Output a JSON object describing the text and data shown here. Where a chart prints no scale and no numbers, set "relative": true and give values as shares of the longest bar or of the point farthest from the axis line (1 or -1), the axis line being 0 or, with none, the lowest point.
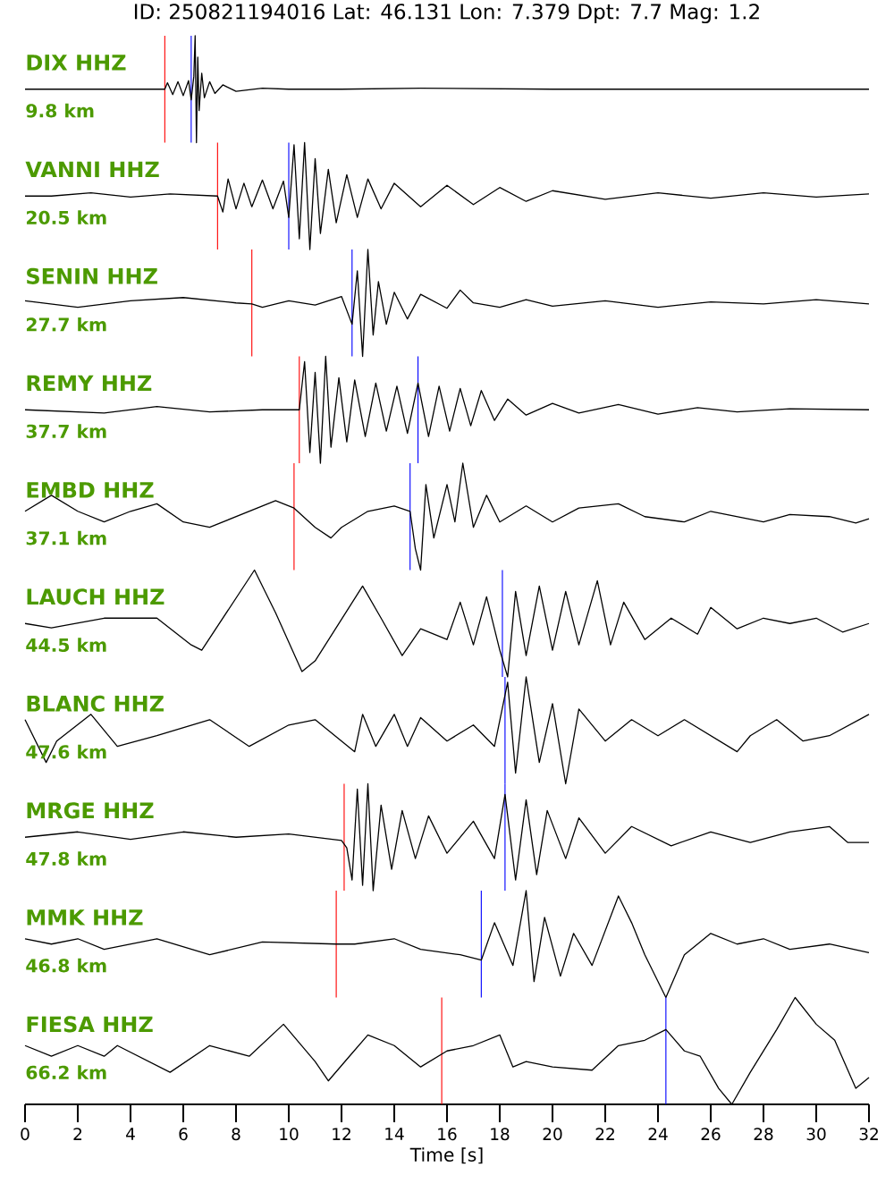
{
  "chart_data": [
    {
      "type": "line",
      "relative": true,
      "title": "ID: 250821194016 Lat:  46.131 Lon:   7.379 Dpt:     7.7 Mag:   1.2",
      "annotations": [
        "DIX HHZ",
        "9.8 km"
      ],
      "color": "#000000",
      "xlim": [
        0,
        32
      ],
      "tick_labels": false,
      "ref_lines": [
        {
          "axis": "x",
          "value": 5.3,
          "color": "#ff0000"
        },
        {
          "axis": "x",
          "value": 6.3,
          "color": "#0000ff"
        }
      ],
      "x": [
        0,
        5.3,
        5.4,
        5.6,
        5.8,
        6.0,
        6.2,
        6.3,
        6.4,
        6.45,
        6.5,
        6.55,
        6.6,
        6.7,
        6.8,
        7.0,
        7.2,
        7.5,
        8,
        9,
        10,
        12,
        15,
        20,
        25,
        32
      ],
      "values": [
        0.5,
        0.5,
        0.56,
        0.45,
        0.57,
        0.44,
        0.58,
        0.4,
        0.62,
        1,
        0,
        0.8,
        0.3,
        0.65,
        0.42,
        0.57,
        0.46,
        0.54,
        0.48,
        0.51,
        0.5,
        0.5,
        0.51,
        0.5,
        0.5,
        0.5
      ]
    },
    {
      "type": "line",
      "relative": true,
      "annotations": [
        "VANNI HHZ",
        "20.5 km"
      ],
      "color": "#000000",
      "xlim": [
        0,
        32
      ],
      "tick_labels": false,
      "ref_lines": [
        {
          "axis": "x",
          "value": 7.3,
          "color": "#ff0000"
        },
        {
          "axis": "x",
          "value": 10.0,
          "color": "#0000ff"
        }
      ],
      "x": [
        0,
        1,
        2.5,
        4,
        5.5,
        7.3,
        7.5,
        7.7,
        8,
        8.3,
        8.6,
        9,
        9.4,
        9.8,
        10,
        10.2,
        10.4,
        10.6,
        10.8,
        11,
        11.2,
        11.5,
        11.8,
        12.2,
        12.6,
        13,
        13.5,
        14,
        15,
        16,
        17,
        18,
        19,
        20,
        22,
        24,
        26,
        28,
        30,
        32
      ],
      "values": [
        0.5,
        0.5,
        0.53,
        0.49,
        0.52,
        0.5,
        0.35,
        0.66,
        0.38,
        0.62,
        0.4,
        0.65,
        0.38,
        0.64,
        0.3,
        0.98,
        0.1,
        1,
        0,
        0.85,
        0.15,
        0.75,
        0.25,
        0.7,
        0.3,
        0.66,
        0.38,
        0.62,
        0.4,
        0.6,
        0.42,
        0.58,
        0.45,
        0.55,
        0.47,
        0.53,
        0.48,
        0.53,
        0.49,
        0.52
      ]
    },
    {
      "type": "line",
      "relative": true,
      "annotations": [
        "SENIN HHZ",
        "27.7 km"
      ],
      "color": "#000000",
      "xlim": [
        0,
        32
      ],
      "tick_labels": false,
      "ref_lines": [
        {
          "axis": "x",
          "value": 8.6,
          "color": "#ff0000"
        },
        {
          "axis": "x",
          "value": 12.4,
          "color": "#0000ff"
        }
      ],
      "x": [
        0,
        2,
        4,
        6,
        8,
        8.6,
        9,
        10,
        11,
        12,
        12.4,
        12.6,
        12.8,
        13,
        13.2,
        13.4,
        13.7,
        14,
        14.5,
        15,
        16,
        16.5,
        17,
        18,
        19,
        20,
        22,
        24,
        26,
        28,
        30,
        32
      ],
      "values": [
        0.52,
        0.46,
        0.52,
        0.55,
        0.5,
        0.49,
        0.46,
        0.52,
        0.48,
        0.56,
        0.3,
        0.8,
        0,
        1,
        0.2,
        0.7,
        0.3,
        0.6,
        0.35,
        0.58,
        0.45,
        0.62,
        0.5,
        0.46,
        0.53,
        0.47,
        0.52,
        0.46,
        0.51,
        0.49,
        0.53,
        0.49
      ]
    },
    {
      "type": "line",
      "relative": true,
      "annotations": [
        "REMY HHZ",
        "37.7 km"
      ],
      "color": "#000000",
      "xlim": [
        0,
        32
      ],
      "tick_labels": false,
      "ref_lines": [
        {
          "axis": "x",
          "value": 10.4,
          "color": "#ff0000"
        },
        {
          "axis": "x",
          "value": 14.9,
          "color": "#0000ff"
        }
      ],
      "x": [
        0,
        3,
        5,
        7,
        9,
        10.4,
        10.6,
        10.8,
        11,
        11.2,
        11.4,
        11.6,
        11.9,
        12.2,
        12.5,
        12.9,
        13.3,
        13.7,
        14.1,
        14.5,
        14.9,
        15.3,
        15.7,
        16.1,
        16.5,
        16.9,
        17.3,
        17.8,
        18.3,
        19,
        20,
        21,
        22.5,
        24,
        25.5,
        27,
        29,
        32
      ],
      "values": [
        0.5,
        0.47,
        0.53,
        0.48,
        0.5,
        0.5,
        0.95,
        0.1,
        0.85,
        0,
        1,
        0.15,
        0.8,
        0.2,
        0.78,
        0.25,
        0.75,
        0.3,
        0.72,
        0.28,
        0.75,
        0.25,
        0.72,
        0.3,
        0.7,
        0.35,
        0.68,
        0.4,
        0.6,
        0.45,
        0.56,
        0.47,
        0.55,
        0.46,
        0.52,
        0.48,
        0.51,
        0.5
      ]
    },
    {
      "type": "line",
      "relative": true,
      "annotations": [
        "EMBD HHZ",
        "37.1 km"
      ],
      "color": "#000000",
      "xlim": [
        0,
        32
      ],
      "tick_labels": false,
      "ref_lines": [
        {
          "axis": "x",
          "value": 10.2,
          "color": "#ff0000"
        },
        {
          "axis": "x",
          "value": 14.6,
          "color": "#0000ff"
        }
      ],
      "x": [
        0,
        1,
        2,
        3,
        4,
        5,
        6,
        7,
        8,
        9.5,
        10.2,
        11,
        11.6,
        12,
        13,
        14,
        14.6,
        14.8,
        15,
        15.2,
        15.5,
        16,
        16.3,
        16.6,
        17,
        17.5,
        18,
        19,
        20,
        21,
        22.5,
        23.5,
        25,
        26,
        27,
        28,
        29,
        30.5,
        31.5,
        32
      ],
      "values": [
        0.55,
        0.7,
        0.55,
        0.45,
        0.55,
        0.62,
        0.45,
        0.4,
        0.5,
        0.65,
        0.58,
        0.4,
        0.3,
        0.4,
        0.55,
        0.6,
        0.55,
        0.2,
        0,
        0.8,
        0.3,
        0.8,
        0.45,
        1,
        0.4,
        0.7,
        0.45,
        0.6,
        0.45,
        0.58,
        0.62,
        0.5,
        0.45,
        0.55,
        0.5,
        0.45,
        0.52,
        0.5,
        0.44,
        0.48
      ]
    },
    {
      "type": "line",
      "relative": true,
      "annotations": [
        "LAUCH HHZ",
        "44.5 km"
      ],
      "color": "#000000",
      "xlim": [
        0,
        32
      ],
      "tick_labels": false,
      "ref_lines": [
        {
          "axis": "x",
          "value": 18.1,
          "color": "#0000ff"
        }
      ],
      "x": [
        0,
        1,
        3,
        5,
        6.3,
        6.7,
        8.7,
        9.5,
        10.5,
        11,
        12.8,
        13.5,
        14.3,
        15,
        16,
        16.5,
        17,
        17.5,
        18,
        18.3,
        18.6,
        19,
        19.5,
        20,
        20.5,
        21,
        21.7,
        22.2,
        22.7,
        23.5,
        24.5,
        25.5,
        26,
        27,
        28,
        29,
        30,
        31,
        32
      ],
      "values": [
        0.5,
        0.46,
        0.55,
        0.55,
        0.3,
        0.25,
        1,
        0.6,
        0.05,
        0.15,
        0.85,
        0.55,
        0.2,
        0.45,
        0.35,
        0.7,
        0.3,
        0.75,
        0.25,
        0,
        0.8,
        0.2,
        0.85,
        0.25,
        0.8,
        0.3,
        0.9,
        0.3,
        0.7,
        0.35,
        0.55,
        0.4,
        0.65,
        0.45,
        0.55,
        0.5,
        0.55,
        0.42,
        0.5
      ]
    },
    {
      "type": "line",
      "relative": true,
      "annotations": [
        "BLANC HHZ",
        "47.6 km"
      ],
      "color": "#000000",
      "xlim": [
        0,
        32
      ],
      "tick_labels": false,
      "ref_lines": [
        {
          "axis": "x",
          "value": 18.2,
          "color": "#0000ff"
        }
      ],
      "x": [
        0,
        0.8,
        1.2,
        2.5,
        3.5,
        5,
        7,
        8.5,
        10,
        11,
        12.5,
        12.8,
        13.3,
        14,
        14.5,
        15,
        16,
        17,
        17.8,
        18.3,
        18.6,
        19,
        19.5,
        20,
        20.5,
        21,
        22,
        23,
        24,
        25,
        26,
        27,
        27.5,
        28.5,
        29.5,
        30.5,
        32
      ],
      "values": [
        0.6,
        0.2,
        0.4,
        0.65,
        0.35,
        0.45,
        0.6,
        0.35,
        0.55,
        0.6,
        0.3,
        0.65,
        0.35,
        0.65,
        0.35,
        0.62,
        0.4,
        0.55,
        0.35,
        0.95,
        0.1,
        1,
        0.2,
        0.75,
        0,
        0.7,
        0.4,
        0.6,
        0.45,
        0.6,
        0.45,
        0.3,
        0.45,
        0.6,
        0.4,
        0.45,
        0.65
      ]
    },
    {
      "type": "line",
      "relative": true,
      "annotations": [
        "MRGE HHZ",
        "47.8 km"
      ],
      "color": "#000000",
      "xlim": [
        0,
        32
      ],
      "tick_labels": false,
      "ref_lines": [
        {
          "axis": "x",
          "value": 12.1,
          "color": "#ff0000"
        },
        {
          "axis": "x",
          "value": 18.2,
          "color": "#0000ff"
        }
      ],
      "x": [
        0,
        2,
        4,
        6,
        8,
        10,
        12,
        12.2,
        12.4,
        12.6,
        12.8,
        13,
        13.2,
        13.5,
        13.9,
        14.3,
        14.8,
        15.3,
        16,
        17,
        17.8,
        18.2,
        18.6,
        19,
        19.4,
        19.8,
        20.5,
        21,
        22,
        23,
        24.5,
        26,
        27.5,
        29,
        30.5,
        31.2,
        32
      ],
      "values": [
        0.5,
        0.55,
        0.48,
        0.55,
        0.5,
        0.53,
        0.47,
        0.4,
        0.1,
        0.95,
        0.05,
        1,
        0,
        0.8,
        0.2,
        0.75,
        0.3,
        0.7,
        0.35,
        0.65,
        0.3,
        0.9,
        0.1,
        0.85,
        0.15,
        0.75,
        0.3,
        0.68,
        0.35,
        0.6,
        0.42,
        0.55,
        0.45,
        0.55,
        0.6,
        0.45,
        0.45
      ]
    },
    {
      "type": "line",
      "relative": true,
      "annotations": [
        "MMK HHZ",
        "46.8 km"
      ],
      "color": "#000000",
      "xlim": [
        0,
        32
      ],
      "tick_labels": false,
      "ref_lines": [
        {
          "axis": "x",
          "value": 11.8,
          "color": "#ff0000"
        },
        {
          "axis": "x",
          "value": 17.3,
          "color": "#0000ff"
        }
      ],
      "x": [
        0,
        1,
        2,
        3,
        5,
        7,
        9,
        11.8,
        12.5,
        14,
        15,
        16.5,
        17.3,
        17.8,
        18.5,
        19,
        19.3,
        19.7,
        20.3,
        20.8,
        21.5,
        22.5,
        23,
        23.5,
        24.3,
        25,
        26,
        27,
        28,
        29,
        30.5,
        32
      ],
      "values": [
        0.55,
        0.5,
        0.55,
        0.45,
        0.55,
        0.4,
        0.52,
        0.5,
        0.5,
        0.55,
        0.45,
        0.4,
        0.35,
        0.7,
        0.3,
        1,
        0.15,
        0.75,
        0.2,
        0.6,
        0.3,
        0.95,
        0.7,
        0.4,
        0,
        0.4,
        0.6,
        0.5,
        0.55,
        0.45,
        0.5,
        0.42
      ]
    },
    {
      "type": "line",
      "relative": true,
      "annotations": [
        "FIESA HHZ",
        "66.2 km"
      ],
      "color": "#000000",
      "xlim": [
        0,
        32
      ],
      "tick_labels": "x",
      "xlabel": "Time [s]",
      "ref_lines": [
        {
          "axis": "x",
          "value": 15.8,
          "color": "#ff0000"
        },
        {
          "axis": "x",
          "value": 24.3,
          "color": "#0000ff"
        }
      ],
      "x": [
        0,
        1,
        2,
        3,
        3.5,
        5.5,
        7,
        8.5,
        9.8,
        11,
        11.5,
        12.3,
        13,
        14,
        15,
        16,
        17,
        18,
        18.5,
        19,
        20,
        21.5,
        22.5,
        23.5,
        24.3,
        25,
        25.6,
        26.3,
        26.8,
        27.5,
        28.5,
        29.2,
        30,
        30.7,
        31.5,
        32
      ],
      "values": [
        0.55,
        0.45,
        0.55,
        0.45,
        0.55,
        0.3,
        0.55,
        0.45,
        0.75,
        0.4,
        0.22,
        0.45,
        0.65,
        0.55,
        0.35,
        0.5,
        0.55,
        0.65,
        0.35,
        0.4,
        0.35,
        0.32,
        0.55,
        0.6,
        0.7,
        0.5,
        0.45,
        0.15,
        0,
        0.3,
        0.7,
        1,
        0.75,
        0.6,
        0.15,
        0.25
      ],
      "xticks": [
        0,
        2,
        4,
        6,
        8,
        10,
        12,
        14,
        16,
        18,
        20,
        22,
        24,
        26,
        28,
        30,
        32
      ]
    }
  ]
}
